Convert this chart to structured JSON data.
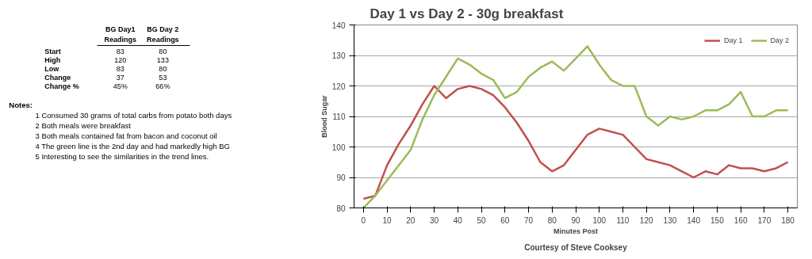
{
  "chart_data": [
    {
      "type": "other",
      "categories": [
        "BG Day1 Readings",
        "BG Day 2 Readings"
      ],
      "y_categories": [
        "Start",
        "High",
        "Low",
        "Change",
        "Change %"
      ],
      "cell_labels": [
        [
          "83",
          "80"
        ],
        [
          "120",
          "133"
        ],
        [
          "83",
          "80"
        ],
        [
          "37",
          "53"
        ],
        [
          "45%",
          "66%"
        ]
      ],
      "annotations": [
        "Notes:",
        "1 Consumed 30 grams of total carbs from potato both days",
        "2 Both meals were breakfast",
        "3 Both meals contained fat from bacon and coconut oil",
        "4 The green line is the 2nd day and had markedly high BG",
        "5 Interesting to see the similarities in the trend lines."
      ]
    },
    {
      "type": "line",
      "title": "Day 1 vs Day 2 - 30g breakfast",
      "xlabel": "Minutes Post",
      "ylabel": "Blood Sugar",
      "x": [
        0,
        5,
        10,
        15,
        20,
        25,
        30,
        35,
        40,
        45,
        50,
        55,
        60,
        65,
        70,
        75,
        80,
        85,
        90,
        95,
        100,
        105,
        110,
        115,
        120,
        125,
        130,
        135,
        140,
        145,
        150,
        155,
        160,
        165,
        170,
        175,
        180
      ],
      "series": [
        {
          "name": "Day 1",
          "color": "#c0504d",
          "values": [
            83,
            84,
            94,
            101,
            107,
            114,
            120,
            116,
            119,
            120,
            119,
            117,
            113,
            108,
            102,
            95,
            92,
            94,
            99,
            104,
            106,
            105,
            104,
            100,
            96,
            95,
            94,
            92,
            90,
            92,
            91,
            94,
            93,
            93,
            92,
            93,
            95
          ]
        },
        {
          "name": "Day 2",
          "color": "#9bbb59",
          "values": [
            80,
            84,
            89,
            94,
            99,
            109,
            117,
            123,
            129,
            127,
            124,
            122,
            116,
            118,
            123,
            126,
            128,
            125,
            129,
            133,
            127,
            122,
            120,
            120,
            110,
            107,
            110,
            109,
            110,
            112,
            112,
            114,
            118,
            110,
            110,
            112,
            112
          ]
        }
      ],
      "xlim": [
        -4,
        184
      ],
      "ylim": [
        80,
        140
      ],
      "xticks": [
        0,
        10,
        20,
        30,
        40,
        50,
        60,
        70,
        80,
        90,
        100,
        110,
        120,
        130,
        140,
        150,
        160,
        170,
        180
      ],
      "yticks": [
        80,
        90,
        100,
        110,
        120,
        130,
        140
      ],
      "grid": "y",
      "legend": "top right",
      "marker": "none",
      "line_style": "solid",
      "annotations": [
        "Courtesy of Steve Cooksey"
      ]
    }
  ]
}
